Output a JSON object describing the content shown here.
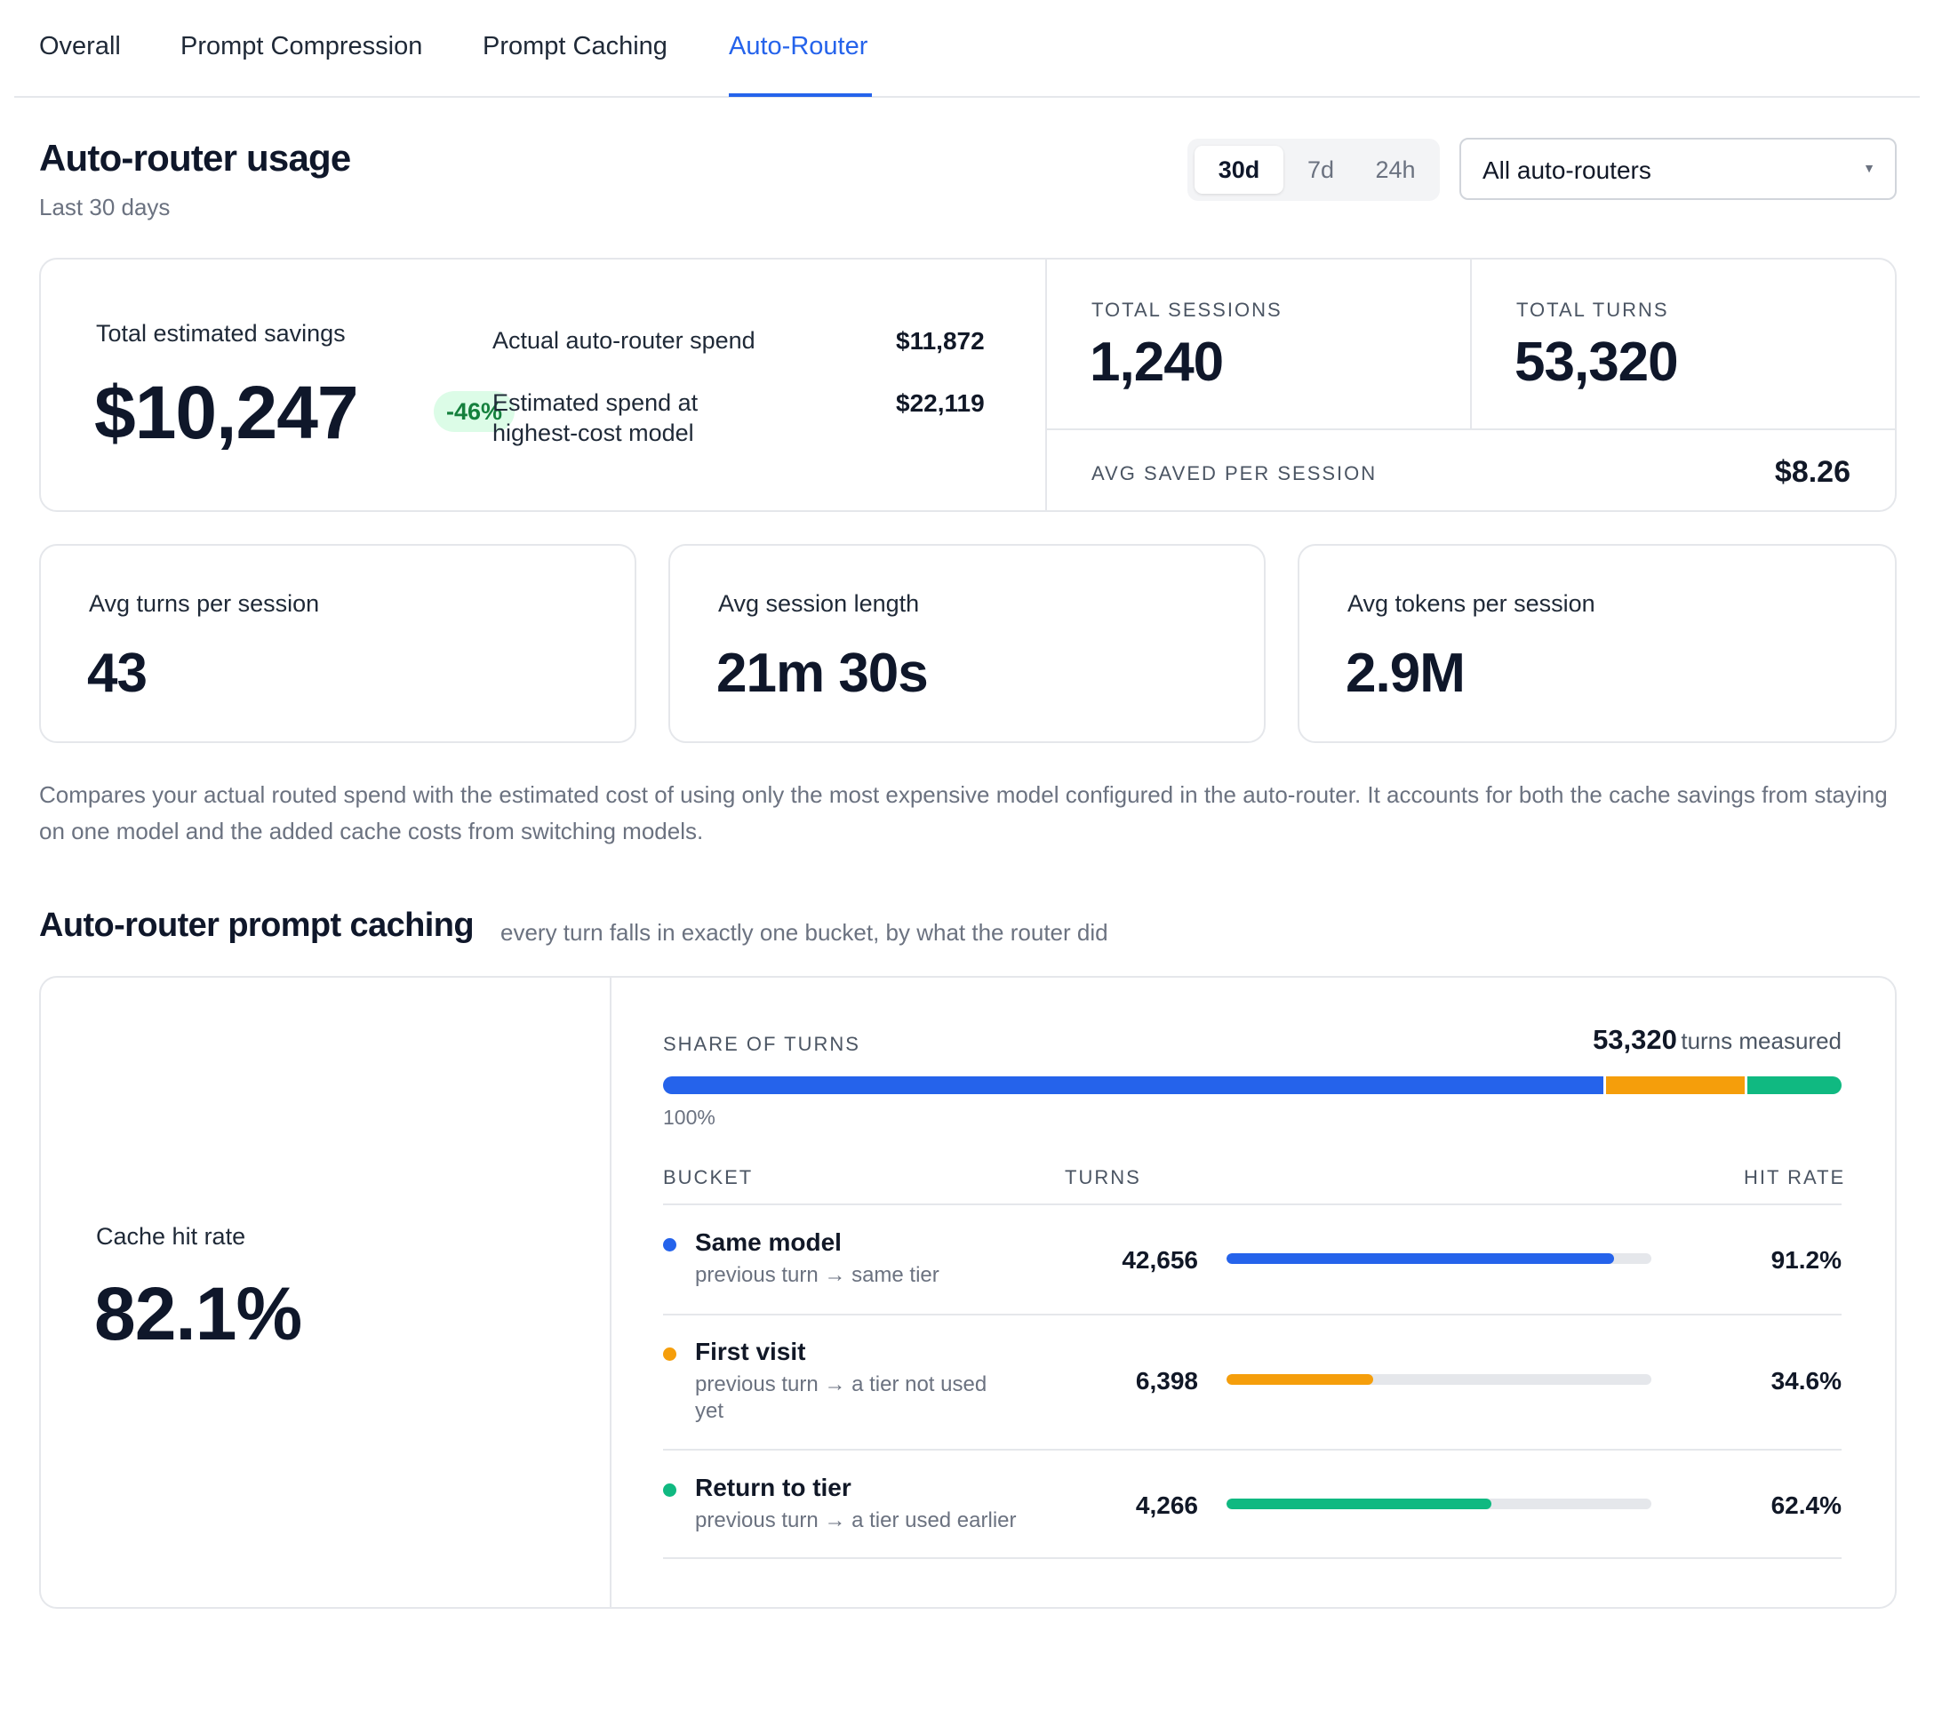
{
  "tabs": [
    {
      "label": "Overall",
      "active": false
    },
    {
      "label": "Prompt Compression",
      "active": false
    },
    {
      "label": "Prompt Caching",
      "active": false
    },
    {
      "label": "Auto-Router",
      "active": true
    }
  ],
  "header": {
    "title": "Auto-router usage",
    "subtitle": "Last 30 days",
    "range_options": [
      "30d",
      "7d",
      "24h"
    ],
    "range_selected": "30d",
    "router_select": "All auto-routers"
  },
  "savings": {
    "label": "Total estimated savings",
    "value": "$10,247",
    "delta": "-46%",
    "actual_label": "Actual auto-router spend",
    "actual_value": "$11,872",
    "estimated_label": "Estimated spend at highest-cost model",
    "estimated_value": "$22,119"
  },
  "totals": {
    "sessions_label": "TOTAL SESSIONS",
    "sessions_value": "1,240",
    "turns_label": "TOTAL TURNS",
    "turns_value": "53,320",
    "avg_saved_label": "AVG SAVED PER SESSION",
    "avg_saved_value": "$8.26"
  },
  "stats": [
    {
      "label": "Avg turns per session",
      "value": "43"
    },
    {
      "label": "Avg session length",
      "value": "21m 30s"
    },
    {
      "label": "Avg tokens per session",
      "value": "2.9M"
    }
  ],
  "note": "Compares your actual routed spend with the estimated cost of using only the most expensive model configured in the auto-router. It accounts for both the cache savings from staying on one model and the added cache costs from switching models.",
  "caching": {
    "title": "Auto-router prompt caching",
    "subtitle": "every turn falls in exactly one bucket, by what the router did",
    "hit_rate_label": "Cache hit rate",
    "hit_rate_value": "82.1%",
    "share_label": "SHARE OF TURNS",
    "measured_value": "53,320",
    "measured_label": "turns measured",
    "share_total": "100%",
    "col_bucket": "BUCKET",
    "col_turns": "TURNS",
    "col_hit_rate": "HIT RATE",
    "buckets": [
      {
        "name": "Same model",
        "desc": "previous turn → same tier",
        "turns": "42,656",
        "turns_num": 42656,
        "hit_rate": "91.2%",
        "hit_frac": 0.912,
        "color": "#2563eb"
      },
      {
        "name": "First visit",
        "desc": "previous turn → a tier not used yet",
        "turns": "6,398",
        "turns_num": 6398,
        "hit_rate": "34.6%",
        "hit_frac": 0.346,
        "color": "#f59e0b"
      },
      {
        "name": "Return to tier",
        "desc": "previous turn → a tier used earlier",
        "turns": "4,266",
        "turns_num": 4266,
        "hit_rate": "62.4%",
        "hit_frac": 0.624,
        "color": "#10b981"
      }
    ]
  }
}
